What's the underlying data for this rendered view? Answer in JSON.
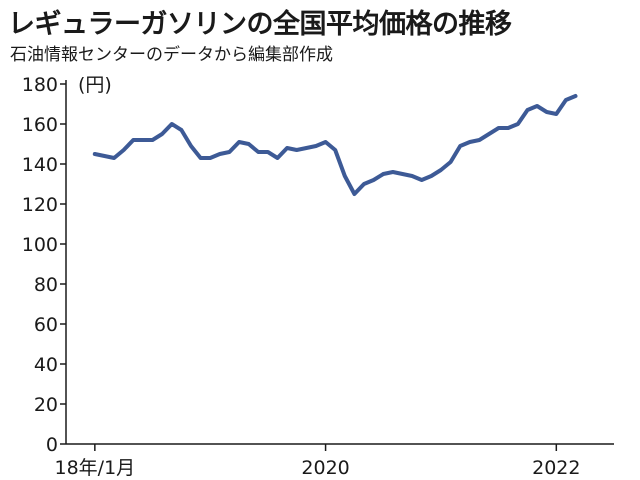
{
  "title": "レギュラーガソリンの全国平均価格の推移",
  "subtitle": "石油情報センターのデータから編集部作成",
  "colors": {
    "line": "#3d5a96",
    "axis": "#1a1a1a"
  },
  "chart_data": {
    "type": "line",
    "title": "レギュラーガソリンの全国平均価格の推移",
    "ylabel": "(円)",
    "ylim": [
      0,
      180
    ],
    "yticks": [
      0,
      20,
      40,
      60,
      80,
      100,
      120,
      140,
      160,
      180
    ],
    "xlim": [
      "2017-10",
      "2022-07"
    ],
    "xticks": [
      {
        "x": "2018-01",
        "label": "18年/1月"
      },
      {
        "x": "2020-01",
        "label": "2020"
      },
      {
        "x": "2022-01",
        "label": "2022"
      }
    ],
    "grid": false,
    "series": [
      {
        "x": [
          "2018-01",
          "2018-02",
          "2018-03",
          "2018-04",
          "2018-05",
          "2018-06",
          "2018-07",
          "2018-08",
          "2018-09",
          "2018-10",
          "2018-11",
          "2018-12",
          "2019-01",
          "2019-02",
          "2019-03",
          "2019-04",
          "2019-05",
          "2019-06",
          "2019-07",
          "2019-08",
          "2019-09",
          "2019-10",
          "2019-11",
          "2019-12",
          "2020-01",
          "2020-02",
          "2020-03",
          "2020-04",
          "2020-05",
          "2020-06",
          "2020-07",
          "2020-08",
          "2020-09",
          "2020-10",
          "2020-11",
          "2020-12",
          "2021-01",
          "2021-02",
          "2021-03",
          "2021-04",
          "2021-05",
          "2021-06",
          "2021-07",
          "2021-08",
          "2021-09",
          "2021-10",
          "2021-11",
          "2021-12",
          "2022-01",
          "2022-02",
          "2022-03"
        ],
        "values": [
          145,
          144,
          143,
          147,
          152,
          152,
          152,
          155,
          160,
          157,
          149,
          143,
          143,
          145,
          146,
          151,
          150,
          146,
          146,
          143,
          148,
          147,
          148,
          149,
          151,
          147,
          134,
          125,
          130,
          132,
          135,
          136,
          135,
          134,
          132,
          134,
          137,
          141,
          149,
          151,
          152,
          155,
          158,
          158,
          160,
          167,
          169,
          166,
          165,
          172,
          174
        ]
      }
    ]
  }
}
